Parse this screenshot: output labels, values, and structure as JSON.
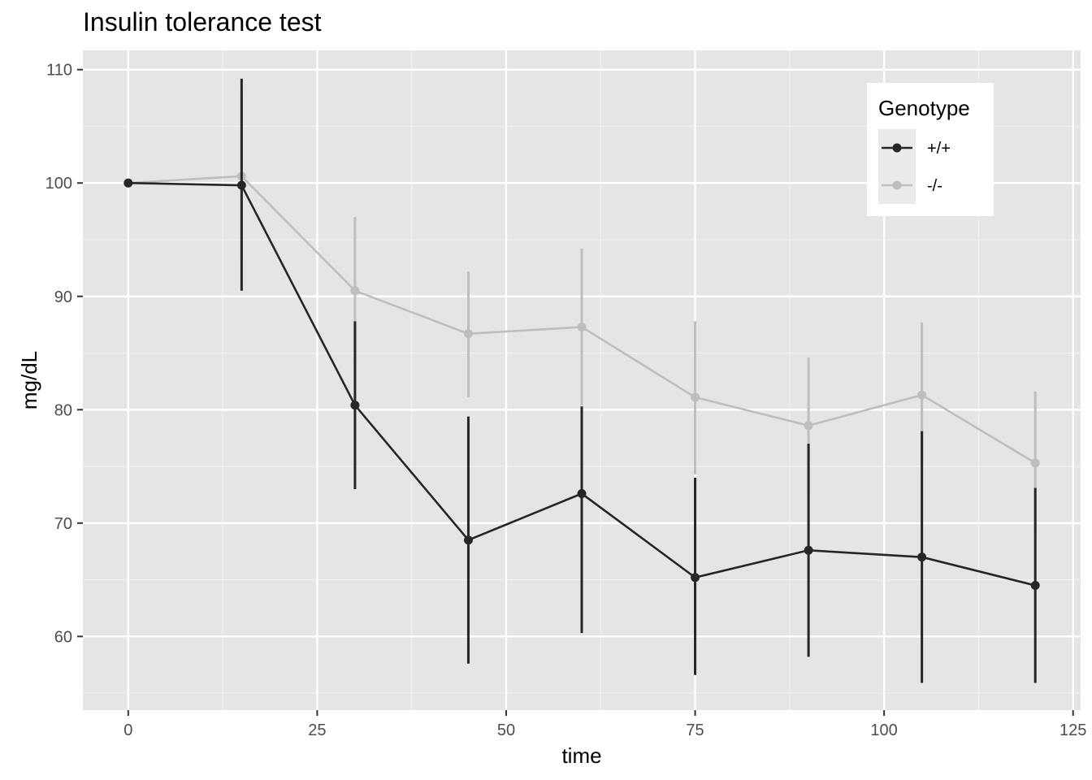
{
  "chart_data": {
    "type": "line",
    "title": "Insulin tolerance test",
    "xlabel": "time",
    "ylabel": "mg/dL",
    "xlim": [
      -6,
      126
    ],
    "ylim": [
      53.5,
      111.7
    ],
    "x_ticks": [
      0,
      25,
      50,
      75,
      100,
      125
    ],
    "y_ticks": [
      60,
      70,
      80,
      90,
      100,
      110
    ],
    "x_tick_labels": [
      "0",
      "25",
      "50",
      "75",
      "100",
      "125"
    ],
    "y_tick_labels": [
      "60",
      "70",
      "80",
      "90",
      "100",
      "110"
    ],
    "grid": true,
    "legend": {
      "title": "Genotype",
      "position": "top-right"
    },
    "x": [
      0,
      15,
      30,
      45,
      60,
      75,
      90,
      105,
      120
    ],
    "series": [
      {
        "name": "-/-",
        "color": "#bebebe",
        "values": [
          100,
          100.6,
          90.5,
          86.7,
          87.3,
          81.1,
          78.6,
          81.3,
          75.3
        ],
        "lower": [
          100,
          93.4,
          84.0,
          81.1,
          80.4,
          74.3,
          72.6,
          74.8,
          69.0
        ],
        "upper": [
          100,
          107.8,
          97.0,
          92.2,
          94.2,
          87.8,
          84.6,
          87.7,
          81.6
        ]
      },
      {
        "name": "+/+",
        "color": "#262626",
        "values": [
          100,
          99.8,
          80.4,
          68.5,
          72.6,
          65.2,
          67.6,
          67.0,
          64.5
        ],
        "lower": [
          100,
          90.5,
          73.0,
          57.6,
          60.3,
          56.6,
          58.2,
          55.9,
          55.9
        ],
        "upper": [
          100,
          109.2,
          87.8,
          79.4,
          80.3,
          74.0,
          77.0,
          78.1,
          73.1
        ]
      }
    ]
  }
}
